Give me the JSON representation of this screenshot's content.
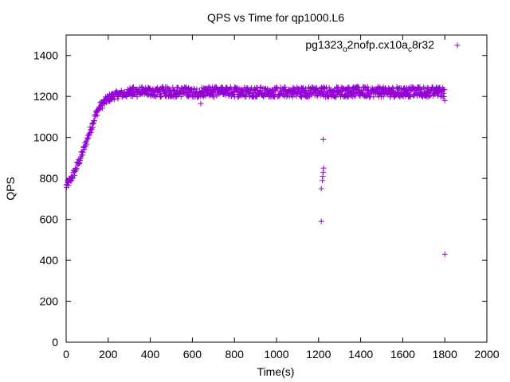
{
  "chart_data": {
    "type": "scatter",
    "title": "QPS vs Time for qp1000.L6",
    "xlabel": "Time(s)",
    "ylabel": "QPS",
    "xlim": [
      0,
      2000
    ],
    "ylim": [
      0,
      1500
    ],
    "xticks": [
      0,
      200,
      400,
      600,
      800,
      1000,
      1200,
      1400,
      1600,
      1800,
      2000
    ],
    "yticks": [
      0,
      200,
      400,
      600,
      800,
      1000,
      1200,
      1400
    ],
    "legend_position": "top-right",
    "marker": "+",
    "series": [
      {
        "name": "pg1323",
        "name_sub": "o",
        "name_mid": "2nofp.cx10a",
        "name_sub2": "c",
        "name_tail": "8r32",
        "color": "#9400d3",
        "ramp": [
          [
            0,
            760
          ],
          [
            20,
            790
          ],
          [
            40,
            830
          ],
          [
            60,
            880
          ],
          [
            80,
            930
          ],
          [
            100,
            990
          ],
          [
            120,
            1050
          ],
          [
            140,
            1110
          ],
          [
            160,
            1150
          ],
          [
            180,
            1170
          ],
          [
            200,
            1190
          ],
          [
            230,
            1205
          ],
          [
            260,
            1212
          ],
          [
            300,
            1215
          ]
        ],
        "plateau": {
          "x_start": 300,
          "x_end": 1800,
          "y_center": 1222,
          "y_spread": 25
        },
        "outliers": [
          [
            1213,
            590
          ],
          [
            1213,
            750
          ],
          [
            1218,
            790
          ],
          [
            1220,
            810
          ],
          [
            1222,
            830
          ],
          [
            1224,
            850
          ],
          [
            1222,
            990
          ],
          [
            1800,
            430
          ],
          [
            1800,
            1180
          ],
          [
            640,
            1165
          ]
        ]
      }
    ]
  }
}
